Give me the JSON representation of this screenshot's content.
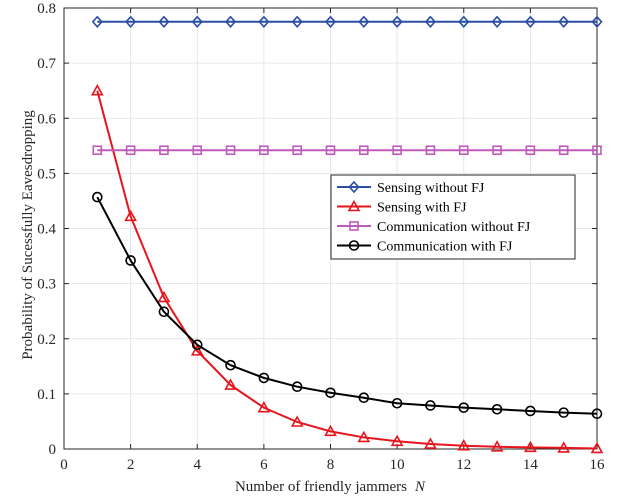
{
  "chart_data": {
    "type": "line",
    "title": "",
    "xlabel": "Number of friendly jammers",
    "xlabel_var": "N",
    "ylabel": "Probability of Sucessfully Eavesdropping",
    "xlim": [
      0,
      16
    ],
    "ylim": [
      0,
      0.8
    ],
    "xticks": [
      0,
      2,
      4,
      6,
      8,
      10,
      12,
      14,
      16
    ],
    "xtick_labels": [
      "0",
      "2",
      "4",
      "6",
      "8",
      "10",
      "12",
      "14",
      "16"
    ],
    "yticks": [
      0,
      0.1,
      0.2,
      0.3,
      0.4,
      0.5,
      0.6,
      0.7,
      0.8
    ],
    "ytick_labels": [
      "0",
      "0.1",
      "0.2",
      "0.3",
      "0.4",
      "0.5",
      "0.6",
      "0.7",
      "0.8"
    ],
    "grid": true,
    "legend_position": "center-right",
    "x": [
      1,
      2,
      3,
      4,
      5,
      6,
      7,
      8,
      9,
      10,
      11,
      12,
      13,
      14,
      15,
      16
    ],
    "series": [
      {
        "name": "Sensing without FJ",
        "color": "#2b4fa3",
        "marker": "diamond",
        "values": [
          0.775,
          0.775,
          0.775,
          0.775,
          0.775,
          0.775,
          0.775,
          0.775,
          0.775,
          0.775,
          0.775,
          0.775,
          0.775,
          0.775,
          0.775,
          0.775
        ]
      },
      {
        "name": "Sensing with FJ",
        "color": "#e8141c",
        "marker": "triangle",
        "values": [
          0.65,
          0.422,
          0.275,
          0.178,
          0.116,
          0.075,
          0.049,
          0.032,
          0.021,
          0.014,
          0.009,
          0.006,
          0.004,
          0.003,
          0.002,
          0.001
        ]
      },
      {
        "name": "Communication without FJ",
        "color": "#c05ab8",
        "marker": "square",
        "values": [
          0.542,
          0.542,
          0.542,
          0.542,
          0.542,
          0.542,
          0.542,
          0.542,
          0.542,
          0.542,
          0.542,
          0.542,
          0.542,
          0.542,
          0.542,
          0.542
        ]
      },
      {
        "name": "Communication with FJ",
        "color": "#000000",
        "marker": "circle",
        "values": [
          0.457,
          0.342,
          0.249,
          0.189,
          0.152,
          0.129,
          0.113,
          0.102,
          0.093,
          0.083,
          0.079,
          0.075,
          0.072,
          0.069,
          0.066,
          0.064
        ]
      }
    ]
  }
}
